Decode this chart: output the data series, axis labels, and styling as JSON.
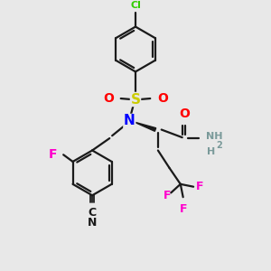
{
  "background_color": "#e8e8e8",
  "bond_color": "#1a1a1a",
  "atom_colors": {
    "Cl": "#33cc00",
    "S": "#cccc00",
    "O": "#ff0000",
    "N": "#0000ff",
    "F": "#ff00cc",
    "NH": "#7a9a9a",
    "C": "#1a1a1a",
    "N_cyan": "#1a1a1a"
  },
  "figsize": [
    3.0,
    3.0
  ],
  "dpi": 100
}
